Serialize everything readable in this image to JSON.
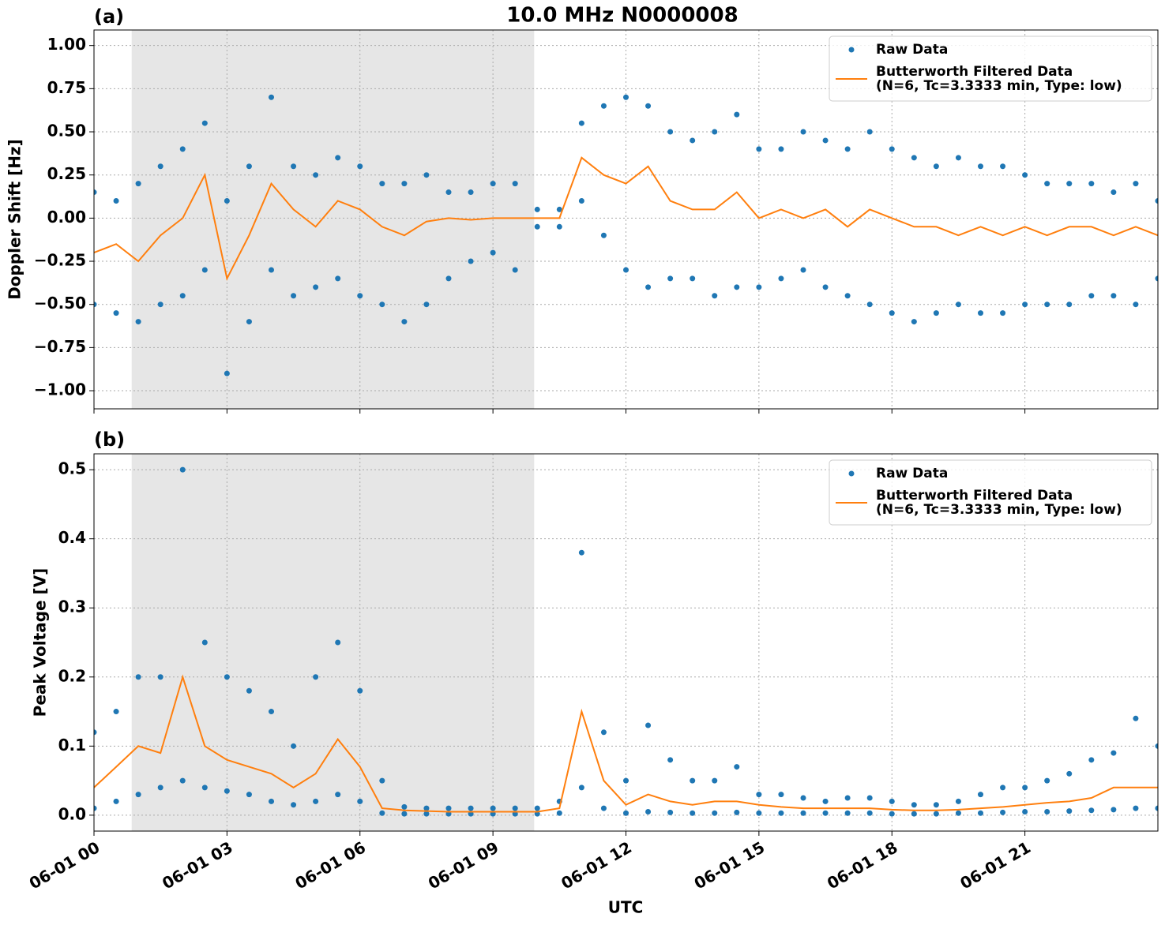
{
  "chart_data": [
    {
      "type": "line",
      "title": "10.0 MHz N0000008",
      "panel_label": "(a)",
      "ylabel": "Doppler Shift [Hz]",
      "xlim": [
        0,
        24
      ],
      "ylim": [
        -1.105,
        1.09
      ],
      "grid": true,
      "legend": "upper right",
      "shaded_span": [
        0.85,
        9.93
      ],
      "yticks": [
        {
          "value": 1,
          "label": "1.00"
        },
        {
          "value": 0.75,
          "label": "0.75"
        },
        {
          "value": 0.5,
          "label": "0.50"
        },
        {
          "value": 0.25,
          "label": "0.25"
        },
        {
          "value": 0,
          "label": "0.00"
        },
        {
          "value": -0.25,
          "label": "−0.25"
        },
        {
          "value": -0.5,
          "label": "−0.50"
        },
        {
          "value": -0.75,
          "label": "−0.75"
        },
        {
          "value": -1,
          "label": "−1.00"
        }
      ],
      "series": [
        {
          "name": "Raw Data",
          "type": "scatter",
          "color": "#1f77b4",
          "x": [
            0,
            0,
            0.5,
            0.5,
            1,
            1,
            1.5,
            1.5,
            2,
            2,
            2.5,
            2.5,
            3,
            3,
            3.5,
            3.5,
            4,
            4,
            4.5,
            4.5,
            5,
            5,
            5.5,
            5.5,
            6,
            6,
            6.5,
            6.5,
            7,
            7,
            7.5,
            7.5,
            8,
            8,
            8.5,
            8.5,
            9,
            9,
            9.5,
            9.5,
            10,
            10,
            10.5,
            10.5,
            11,
            11,
            11.5,
            11.5,
            12,
            12,
            12.5,
            12.5,
            13,
            13,
            13.5,
            13.5,
            14,
            14,
            14.5,
            14.5,
            15,
            15,
            15.5,
            15.5,
            16,
            16,
            16.5,
            16.5,
            17,
            17,
            17.5,
            17.5,
            18,
            18,
            18.5,
            18.5,
            19,
            19,
            19.5,
            19.5,
            20,
            20,
            20.5,
            20.5,
            21,
            21,
            21.5,
            21.5,
            22,
            22,
            22.5,
            22.5,
            23,
            23,
            23.5,
            23.5,
            24,
            24
          ],
          "values": [
            0.15,
            -0.5,
            0.1,
            -0.55,
            0.2,
            -0.6,
            0.3,
            -0.5,
            0.4,
            -0.45,
            0.55,
            -0.3,
            0.1,
            -0.9,
            0.3,
            -0.6,
            0.7,
            -0.3,
            0.3,
            -0.45,
            0.25,
            -0.4,
            0.35,
            -0.35,
            0.3,
            -0.45,
            0.2,
            -0.5,
            0.2,
            -0.6,
            0.25,
            -0.5,
            0.15,
            -0.35,
            0.15,
            -0.25,
            0.2,
            -0.2,
            0.2,
            -0.3,
            0.05,
            -0.05,
            0.05,
            -0.05,
            0.55,
            0.1,
            0.65,
            -0.1,
            0.7,
            -0.3,
            0.65,
            -0.4,
            0.5,
            -0.35,
            0.45,
            -0.35,
            0.5,
            -0.45,
            0.6,
            -0.4,
            0.4,
            -0.4,
            0.4,
            -0.35,
            0.5,
            -0.3,
            0.45,
            -0.4,
            0.4,
            -0.45,
            0.5,
            -0.5,
            0.4,
            -0.55,
            0.35,
            -0.6,
            0.3,
            -0.55,
            0.35,
            -0.5,
            0.3,
            -0.55,
            0.3,
            -0.55,
            0.25,
            -0.5,
            0.2,
            -0.5,
            0.2,
            -0.5,
            0.2,
            -0.45,
            0.15,
            -0.45,
            0.2,
            -0.5,
            0.1,
            -0.35
          ]
        },
        {
          "name": "Butterworth Filtered Data\n(N=6, Tc=3.3333 min, Type: low)",
          "type": "line",
          "color": "#ff7f0e",
          "x": [
            0,
            0.5,
            1,
            1.5,
            2,
            2.5,
            3,
            3.5,
            4,
            4.5,
            5,
            5.5,
            6,
            6.5,
            7,
            7.5,
            8,
            8.5,
            9,
            9.5,
            10,
            10.5,
            11,
            11.5,
            12,
            12.5,
            13,
            13.5,
            14,
            14.5,
            15,
            15.5,
            16,
            16.5,
            17,
            17.5,
            18,
            18.5,
            19,
            19.5,
            20,
            20.5,
            21,
            21.5,
            22,
            22.5,
            23,
            23.5,
            24
          ],
          "values": [
            -0.2,
            -0.15,
            -0.25,
            -0.1,
            0.0,
            0.25,
            -0.35,
            -0.1,
            0.2,
            0.05,
            -0.05,
            0.1,
            0.05,
            -0.05,
            -0.1,
            -0.02,
            0.0,
            -0.01,
            0.0,
            0.0,
            0.0,
            0.0,
            0.35,
            0.25,
            0.2,
            0.3,
            0.1,
            0.05,
            0.05,
            0.15,
            0.0,
            0.05,
            0.0,
            0.05,
            -0.05,
            0.05,
            0.0,
            -0.05,
            -0.05,
            -0.1,
            -0.05,
            -0.1,
            -0.05,
            -0.1,
            -0.05,
            -0.05,
            -0.1,
            -0.05,
            -0.1
          ]
        }
      ]
    },
    {
      "type": "line",
      "panel_label": "(b)",
      "ylabel": "Peak Voltage [V]",
      "xlabel": "UTC",
      "xlim": [
        0,
        24
      ],
      "ylim": [
        -0.023,
        0.523
      ],
      "grid": true,
      "legend": "upper right",
      "shaded_span": [
        0.85,
        9.93
      ],
      "xticks": [
        {
          "value": 0,
          "label": "06-01 00"
        },
        {
          "value": 3,
          "label": "06-01 03"
        },
        {
          "value": 6,
          "label": "06-01 06"
        },
        {
          "value": 9,
          "label": "06-01 09"
        },
        {
          "value": 12,
          "label": "06-01 12"
        },
        {
          "value": 15,
          "label": "06-01 15"
        },
        {
          "value": 18,
          "label": "06-01 18"
        },
        {
          "value": 21,
          "label": "06-01 21"
        }
      ],
      "yticks": [
        0.5,
        0.4,
        0.3,
        0.2,
        0.1,
        {
          "value": 0,
          "label": "0.0"
        }
      ],
      "series": [
        {
          "name": "Raw Data",
          "type": "scatter",
          "color": "#1f77b4",
          "x": [
            0,
            0,
            0.5,
            0.5,
            1,
            1,
            1.5,
            1.5,
            2,
            2,
            2.5,
            2.5,
            3,
            3,
            3.5,
            3.5,
            4,
            4,
            4.5,
            4.5,
            5,
            5,
            5.5,
            5.5,
            6,
            6,
            6.5,
            6.5,
            7,
            7,
            7.5,
            7.5,
            8,
            8,
            8.5,
            8.5,
            9,
            9,
            9.5,
            9.5,
            10,
            10,
            10.5,
            10.5,
            11,
            11,
            11.5,
            11.5,
            12,
            12,
            12.5,
            12.5,
            13,
            13,
            13.5,
            13.5,
            14,
            14,
            14.5,
            14.5,
            15,
            15,
            15.5,
            15.5,
            16,
            16,
            16.5,
            16.5,
            17,
            17,
            17.5,
            17.5,
            18,
            18,
            18.5,
            18.5,
            19,
            19,
            19.5,
            19.5,
            20,
            20,
            20.5,
            20.5,
            21,
            21,
            21.5,
            21.5,
            22,
            22,
            22.5,
            22.5,
            23,
            23,
            23.5,
            23.5,
            24,
            24
          ],
          "values": [
            0.12,
            0.01,
            0.15,
            0.02,
            0.2,
            0.03,
            0.2,
            0.04,
            0.5,
            0.05,
            0.25,
            0.04,
            0.2,
            0.035,
            0.18,
            0.03,
            0.15,
            0.02,
            0.1,
            0.015,
            0.2,
            0.02,
            0.25,
            0.03,
            0.18,
            0.02,
            0.05,
            0.003,
            0.012,
            0.002,
            0.01,
            0.002,
            0.01,
            0.002,
            0.01,
            0.002,
            0.01,
            0.002,
            0.01,
            0.002,
            0.01,
            0.002,
            0.02,
            0.003,
            0.38,
            0.04,
            0.12,
            0.01,
            0.05,
            0.003,
            0.13,
            0.005,
            0.08,
            0.004,
            0.05,
            0.003,
            0.05,
            0.003,
            0.07,
            0.004,
            0.03,
            0.003,
            0.03,
            0.003,
            0.025,
            0.003,
            0.02,
            0.003,
            0.025,
            0.003,
            0.025,
            0.003,
            0.02,
            0.002,
            0.015,
            0.002,
            0.015,
            0.002,
            0.02,
            0.003,
            0.03,
            0.003,
            0.04,
            0.004,
            0.04,
            0.005,
            0.05,
            0.005,
            0.06,
            0.006,
            0.08,
            0.007,
            0.09,
            0.008,
            0.14,
            0.01,
            0.1,
            0.01
          ]
        },
        {
          "name": "Butterworth Filtered Data\n(N=6, Tc=3.3333 min, Type: low)",
          "type": "line",
          "color": "#ff7f0e",
          "x": [
            0,
            0.5,
            1,
            1.5,
            2,
            2.5,
            3,
            3.5,
            4,
            4.5,
            5,
            5.5,
            6,
            6.5,
            7,
            7.5,
            8,
            8.5,
            9,
            9.5,
            10,
            10.5,
            11,
            11.5,
            12,
            12.5,
            13,
            13.5,
            14,
            14.5,
            15,
            15.5,
            16,
            16.5,
            17,
            17.5,
            18,
            18.5,
            19,
            19.5,
            20,
            20.5,
            21,
            21.5,
            22,
            22.5,
            23,
            23.5,
            24
          ],
          "values": [
            0.04,
            0.07,
            0.1,
            0.09,
            0.2,
            0.1,
            0.08,
            0.07,
            0.06,
            0.04,
            0.06,
            0.11,
            0.07,
            0.01,
            0.007,
            0.006,
            0.005,
            0.005,
            0.005,
            0.005,
            0.005,
            0.01,
            0.15,
            0.05,
            0.015,
            0.03,
            0.02,
            0.015,
            0.02,
            0.02,
            0.015,
            0.012,
            0.01,
            0.01,
            0.01,
            0.01,
            0.008,
            0.007,
            0.007,
            0.008,
            0.01,
            0.012,
            0.015,
            0.018,
            0.02,
            0.025,
            0.04,
            0.04,
            0.04
          ]
        }
      ]
    }
  ]
}
